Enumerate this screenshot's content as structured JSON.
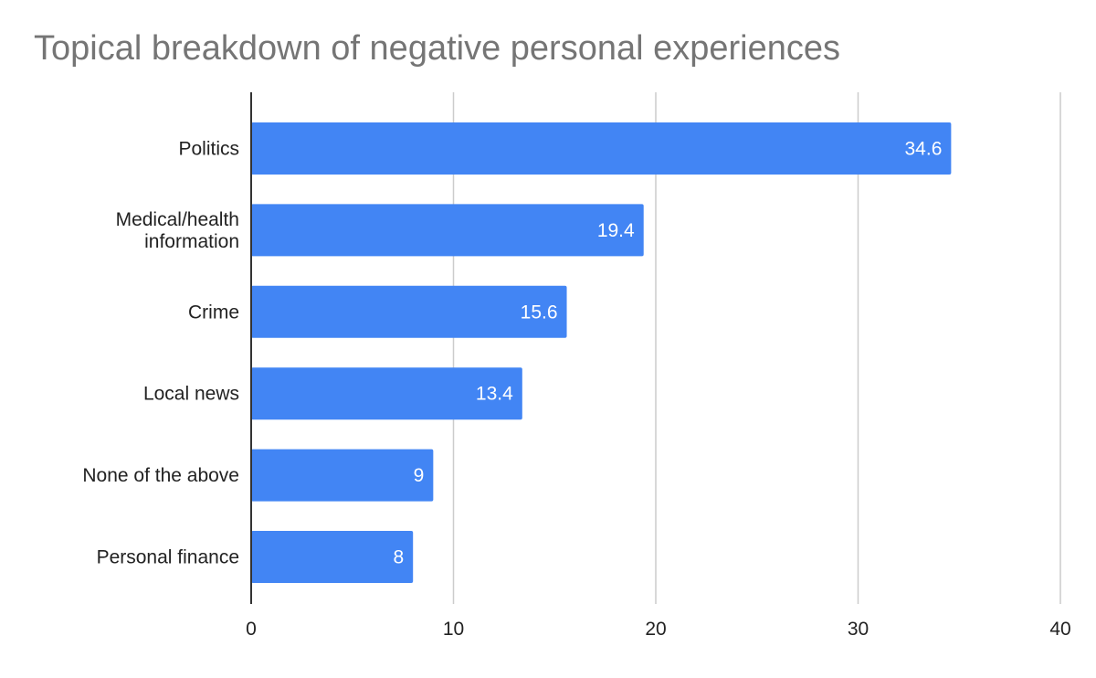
{
  "chart_data": {
    "type": "bar",
    "orientation": "horizontal",
    "title": "Topical breakdown of negative personal experiences",
    "categories": [
      [
        "Politics"
      ],
      [
        "Medical/health",
        "information"
      ],
      [
        "Crime"
      ],
      [
        "Local news"
      ],
      [
        "None of the above"
      ],
      [
        "Personal finance"
      ]
    ],
    "values": [
      34.6,
      19.4,
      15.6,
      13.4,
      9,
      8
    ],
    "data_labels": [
      "34.6",
      "19.4",
      "15.6",
      "13.4",
      "9",
      "8"
    ],
    "xlim": [
      0,
      40
    ],
    "xticks": [
      0,
      10,
      20,
      30,
      40
    ],
    "xlabel": "",
    "ylabel": "",
    "grid": true,
    "legend": "none",
    "bar_color": "#4285f4",
    "grid_color": "#cccccc",
    "axis_color": "#333333"
  }
}
